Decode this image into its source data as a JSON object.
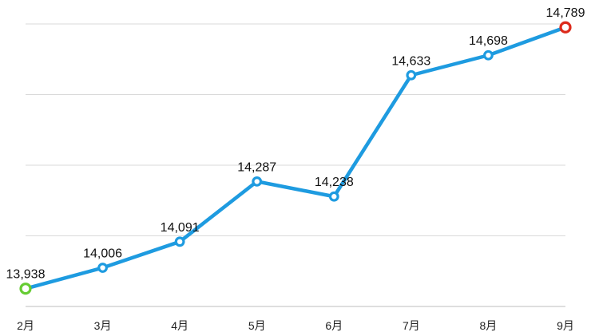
{
  "chart_data": {
    "type": "line",
    "title": "",
    "xlabel": "",
    "ylabel": "",
    "categories": [
      "2月",
      "3月",
      "4月",
      "5月",
      "6月",
      "7月",
      "8月",
      "9月"
    ],
    "series": [
      {
        "values": [
          13938,
          14006,
          14091,
          14287,
          14238,
          14633,
          14698,
          14789
        ]
      }
    ],
    "data_labels": [
      "13,938",
      "14,006",
      "14,091",
      "14,287",
      "14,238",
      "14,633",
      "14,698",
      "14,789"
    ],
    "ylim": [
      13880,
      14800
    ],
    "gridlines_y": [
      13880,
      14110,
      14340,
      14570,
      14800
    ],
    "grid": true,
    "legend": "none",
    "colors": {
      "line": "#1e9be0",
      "first_point": "#66cc33",
      "last_point": "#dd2a1b",
      "grid": "#d9d9d9"
    }
  }
}
